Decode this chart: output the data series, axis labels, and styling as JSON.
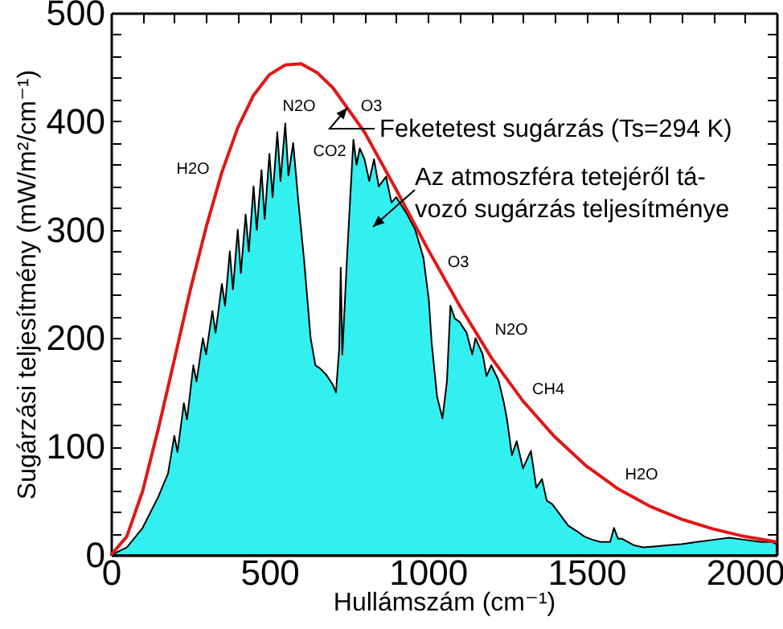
{
  "chart_data": {
    "type": "line",
    "xlabel": "Hullámszám (cm⁻¹)",
    "ylabel": "Sugárzási teljesítmény (mW/m²/cm⁻¹)",
    "xlim": [
      0,
      2100
    ],
    "ylim": [
      0,
      500
    ],
    "xticks": [
      0,
      {
        "value": 100,
        "label": null
      },
      {
        "value": 200,
        "label": null
      },
      {
        "value": 300,
        "label": null
      },
      {
        "value": 400,
        "label": null
      },
      500,
      {
        "value": 600,
        "label": null
      },
      {
        "value": 700,
        "label": null
      },
      {
        "value": 800,
        "label": null
      },
      {
        "value": 900,
        "label": null
      },
      1000,
      {
        "value": 1100,
        "label": null
      },
      {
        "value": 1200,
        "label": null
      },
      {
        "value": 1300,
        "label": null
      },
      {
        "value": 1400,
        "label": null
      },
      1500,
      {
        "value": 1600,
        "label": null
      },
      {
        "value": 1700,
        "label": null
      },
      {
        "value": 1800,
        "label": null
      },
      {
        "value": 1900,
        "label": null
      },
      2000
    ],
    "yticks": [
      0,
      {
        "value": 20,
        "label": null
      },
      {
        "value": 40,
        "label": null
      },
      {
        "value": 60,
        "label": null
      },
      {
        "value": 80,
        "label": null
      },
      100,
      {
        "value": 120,
        "label": null
      },
      {
        "value": 140,
        "label": null
      },
      {
        "value": 160,
        "label": null
      },
      {
        "value": 180,
        "label": null
      },
      200,
      {
        "value": 220,
        "label": null
      },
      {
        "value": 240,
        "label": null
      },
      {
        "value": 260,
        "label": null
      },
      {
        "value": 280,
        "label": null
      },
      300,
      {
        "value": 320,
        "label": null
      },
      {
        "value": 340,
        "label": null
      },
      {
        "value": 360,
        "label": null
      },
      {
        "value": 380,
        "label": null
      },
      400,
      {
        "value": 420,
        "label": null
      },
      {
        "value": 440,
        "label": null
      },
      {
        "value": 460,
        "label": null
      },
      {
        "value": 480,
        "label": null
      },
      500
    ],
    "series": [
      {
        "type": "area",
        "color": "#33f0f0",
        "x": [
          0,
          50,
          100,
          150,
          180,
          200,
          210,
          230,
          240,
          260,
          270,
          290,
          300,
          320,
          330,
          350,
          360,
          375,
          385,
          400,
          410,
          425,
          435,
          450,
          460,
          475,
          485,
          500,
          510,
          525,
          535,
          550,
          560,
          575,
          590,
          610,
          630,
          645,
          660,
          680,
          700,
          710,
          720,
          725,
          730,
          745,
          755,
          765,
          775,
          785,
          800,
          815,
          830,
          845,
          868,
          885,
          900,
          935,
          960,
          986,
          1003,
          1012,
          1029,
          1046,
          1060,
          1071,
          1085,
          1100,
          1122,
          1140,
          1150,
          1173,
          1185,
          1200,
          1223,
          1240,
          1249,
          1265,
          1280,
          1300,
          1325,
          1342,
          1360,
          1375,
          1392,
          1410,
          1443,
          1470,
          1494,
          1520,
          1545,
          1575,
          1587,
          1600,
          1613,
          1650,
          1680,
          1720,
          1760,
          1800,
          1849,
          1900,
          1951,
          2000,
          2050,
          2086,
          2100
        ],
        "values": [
          0,
          7,
          25,
          54,
          75,
          110,
          95,
          140,
          125,
          175,
          160,
          200,
          185,
          225,
          205,
          250,
          230,
          280,
          245,
          300,
          260,
          314,
          280,
          340,
          300,
          355,
          310,
          370,
          330,
          390,
          345,
          398,
          350,
          380,
          330,
          270,
          200,
          175,
          172,
          166,
          157,
          150,
          190,
          265,
          185,
          275,
          330,
          383,
          360,
          375,
          365,
          345,
          365,
          340,
          349,
          325,
          330,
          314,
          300,
          274,
          235,
          195,
          146,
          126,
          160,
          230,
          218,
          215,
          205,
          185,
          200,
          185,
          165,
          175,
          161,
          140,
          126,
          92,
          105,
          80,
          96,
          62,
          70,
          50,
          47,
          40,
          27,
          22,
          17,
          14,
          12,
          12,
          25,
          15,
          15,
          9,
          7,
          8,
          9,
          10,
          12,
          14,
          16,
          14,
          12,
          12,
          10
        ]
      },
      {
        "color": "#e01818",
        "x": [
          0,
          50,
          100,
          150,
          200,
          250,
          300,
          350,
          400,
          450,
          500,
          550,
          600,
          650,
          700,
          800,
          900,
          1000,
          1100,
          1200,
          1300,
          1400,
          1500,
          1600,
          1700,
          1800,
          1900,
          2000,
          2100
        ],
        "values": [
          0,
          17,
          59,
          117,
          180,
          244,
          302,
          353,
          394,
          424,
          443,
          452,
          453,
          445,
          431,
          390,
          337,
          282,
          230,
          182,
          142,
          109,
          82,
          61,
          45,
          33,
          24,
          17,
          12
        ]
      }
    ],
    "annotations": [
      "H2O",
      "N2O",
      "CO2",
      "O3",
      "O3",
      "N2O",
      "CH4",
      "H2O",
      "Feketetest sugárzás (Ts=294 K)",
      "Az atmoszféra tetejéről tá-\nvozó sugárzás teljesítménye"
    ]
  }
}
